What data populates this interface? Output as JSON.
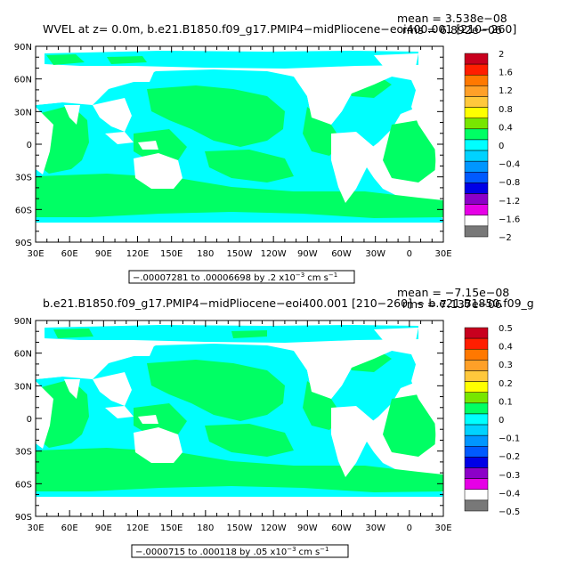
{
  "panels": [
    {
      "title_left": "WVEL at z=    0.0m, b.e21.B1850.f09_g17.PMIP4−midPliocene−eoi400.001 [210−260]",
      "mean_label": "mean = 3.538e−08",
      "rms_label": "rms = 6.892e−06",
      "contour_info": "−.00007281 to .00006698 by .2 x10",
      "contour_info_exp": "−3",
      "contour_info_units": "cm s",
      "contour_info_units_exp": "−1",
      "colorbar_labels": [
        "2",
        "1.6",
        "1.2",
        "0.8",
        "0.4",
        "0",
        "−0.4",
        "−0.8",
        "−1.2",
        "−1.6",
        "−2"
      ]
    },
    {
      "title_left": "b.e21.B1850.f09_g17.PMIP4−midPliocene−eoi400.001 [210−260] − b.e21.B1850.f09_g",
      "mean_label": "mean = −7.15e−08",
      "rms_label": "rms = 7.137e−06",
      "contour_info": "−.0000715 to .000118 by .05 x10",
      "contour_info_exp": "−3",
      "contour_info_units": "cm s",
      "contour_info_units_exp": "−1",
      "colorbar_labels": [
        "0.5",
        "0.4",
        "0.3",
        "0.2",
        "0.1",
        "0",
        "−0.1",
        "−0.2",
        "−0.3",
        "−0.4",
        "−0.5"
      ]
    }
  ],
  "axes": {
    "lat_labels": [
      "90N",
      "60N",
      "30N",
      "0",
      "30S",
      "60S",
      "90S"
    ],
    "lon_labels": [
      "30E",
      "60E",
      "90E",
      "120E",
      "150E",
      "180",
      "150W",
      "120W",
      "90W",
      "60W",
      "30W",
      "0",
      "30E"
    ]
  },
  "colors": {
    "colorbar": [
      "#c8001e",
      "#ff1e00",
      "#ff7800",
      "#ffa028",
      "#ffc83c",
      "#ffff00",
      "#78e600",
      "#00ff64",
      "#00ffff",
      "#00d2ff",
      "#0096ff",
      "#005aff",
      "#0000e6",
      "#8c00c8",
      "#e600e6",
      "#ffffff",
      "#787878"
    ],
    "positive_small": "#00ff64",
    "negative_small": "#00ffff",
    "land": "#ffffff"
  },
  "chart_data": [
    {
      "type": "heatmap",
      "title": "WVEL at z=    0.0m, b.e21.B1850.f09_g17.PMIP4−midPliocene−eoi400.001 [210−260]",
      "mean": 3.538e-08,
      "rms": 6.892e-06,
      "contour_min": -7.281e-05,
      "contour_max": 6.698e-05,
      "contour_interval": 0.0002,
      "units": "cm s-1",
      "colorbar_levels": [
        2,
        1.6,
        1.2,
        0.8,
        0.4,
        0,
        -0.4,
        -0.8,
        -1.2,
        -1.6,
        -2
      ],
      "x_ticks": [
        "30E",
        "60E",
        "90E",
        "120E",
        "150E",
        "180",
        "150W",
        "120W",
        "90W",
        "60W",
        "30W",
        "0",
        "30E"
      ],
      "y_ticks": [
        "90N",
        "60N",
        "30N",
        "0",
        "30S",
        "60S",
        "90S"
      ]
    },
    {
      "type": "heatmap",
      "title": "b.e21.B1850.f09_g17.PMIP4−midPliocene−eoi400.001 [210−260] − b.e21.B1850.f09_g",
      "mean": -7.15e-08,
      "rms": 7.137e-06,
      "contour_min": -7.15e-05,
      "contour_max": 0.000118,
      "contour_interval": 5e-05,
      "units": "cm s-1",
      "colorbar_levels": [
        0.5,
        0.4,
        0.3,
        0.2,
        0.1,
        0,
        -0.1,
        -0.2,
        -0.3,
        -0.4,
        -0.5
      ],
      "x_ticks": [
        "30E",
        "60E",
        "90E",
        "120E",
        "150E",
        "180",
        "150W",
        "120W",
        "90W",
        "60W",
        "30W",
        "0",
        "30E"
      ],
      "y_ticks": [
        "90N",
        "60N",
        "30N",
        "0",
        "30S",
        "60S",
        "90S"
      ]
    }
  ]
}
